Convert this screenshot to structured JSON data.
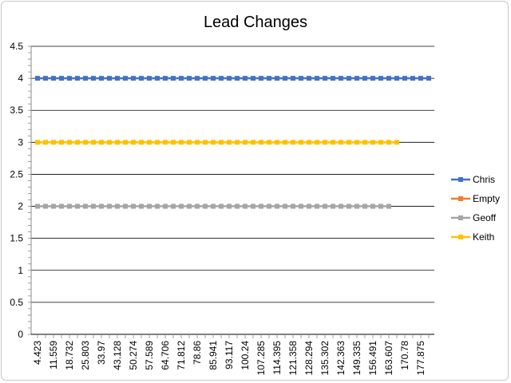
{
  "chart_data": {
    "type": "line",
    "title": "Lead Changes",
    "xlabel": "",
    "ylabel": "",
    "ylim": [
      0,
      4.5
    ],
    "y_ticks": [
      "0",
      "0.5",
      "1",
      "1.5",
      "2",
      "2.5",
      "3",
      "3.5",
      "4",
      "4.5"
    ],
    "x_tick_labels": [
      "4.423",
      "11.559",
      "18.732",
      "25.803",
      "33.97",
      "43.128",
      "50.274",
      "57.589",
      "64.706",
      "71.812",
      "78.86",
      "85.941",
      "93.117",
      "100.24",
      "107.285",
      "114.395",
      "121.358",
      "128.294",
      "135.302",
      "142.363",
      "149.335",
      "156.491",
      "163.607",
      "170.78",
      "177.875"
    ],
    "grid": true,
    "legend_position": "right",
    "point_count": 50,
    "series": [
      {
        "name": "Chris",
        "color": "#4472C4",
        "value": 4,
        "points": 50
      },
      {
        "name": "Empty",
        "color": "#ED7D31",
        "value": null,
        "points": 0
      },
      {
        "name": "Geoff",
        "color": "#A5A5A5",
        "value": 2,
        "points": 45
      },
      {
        "name": "Keith",
        "color": "#FFC000",
        "value": 3,
        "points": 46
      }
    ]
  }
}
